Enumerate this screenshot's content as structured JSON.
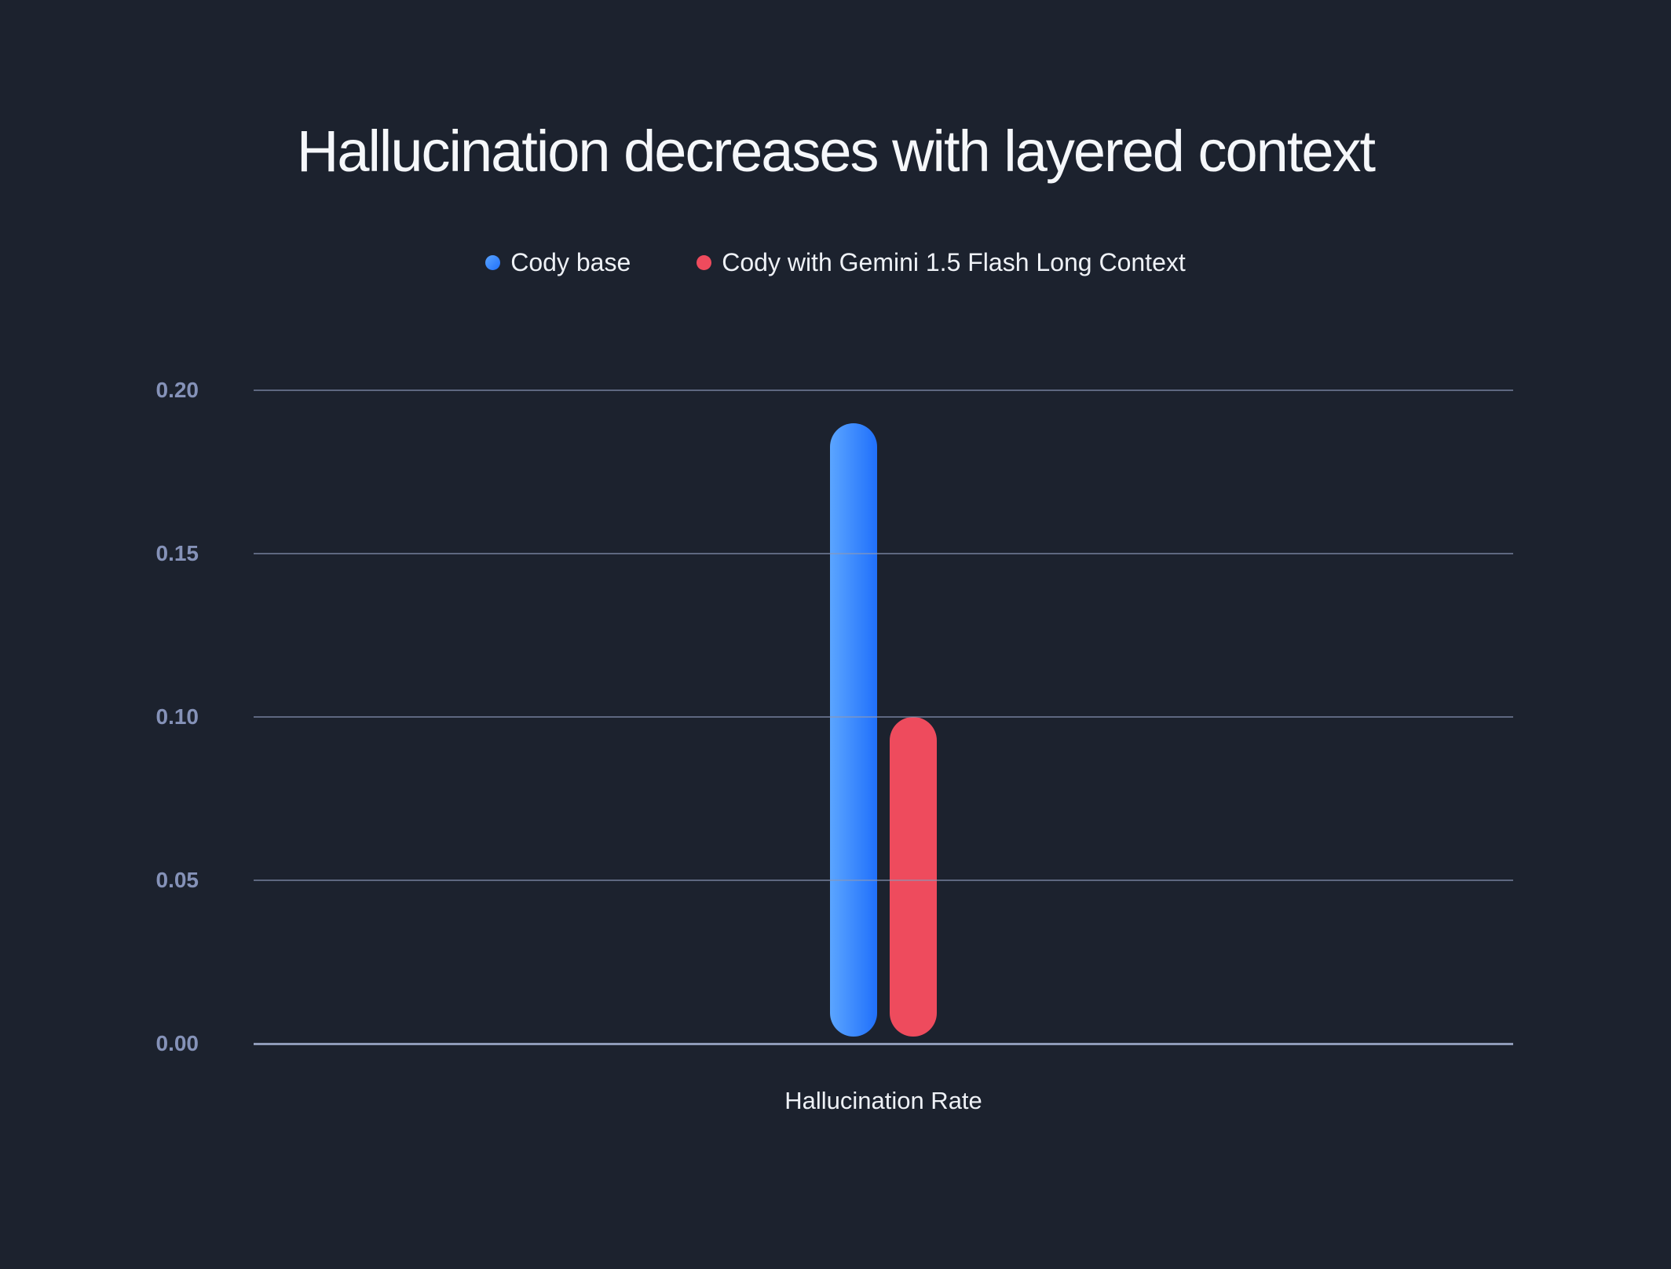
{
  "chart_data": {
    "type": "bar",
    "title": "Hallucination decreases with layered context",
    "categories": [
      "Hallucination Rate"
    ],
    "series": [
      {
        "name": "Cody base",
        "values": [
          0.19
        ],
        "color": "#3c8bfd",
        "gradient": [
          "#5ba5ff",
          "#2070fb"
        ]
      },
      {
        "name": "Cody with Gemini 1.5 Flash Long Context",
        "values": [
          0.1
        ],
        "color": "#ee4b5d"
      }
    ],
    "xlabel": "Hallucination Rate",
    "ylabel": "",
    "ylim": [
      0,
      0.2
    ],
    "y_ticks": [
      0.0,
      0.05,
      0.1,
      0.15,
      0.2
    ],
    "y_tick_labels": [
      "0.00",
      "0.05",
      "0.10",
      "0.15",
      "0.20"
    ],
    "grid": true,
    "legend_position": "top"
  },
  "colors": {
    "background": "#1c222e",
    "title_text": "#f5f7fa",
    "legend_text": "#eef1f6",
    "tick_text": "#8592b8",
    "gridline": "rgba(139,151,183,0.6)",
    "baseline": "rgba(150,162,192,0.95)"
  }
}
